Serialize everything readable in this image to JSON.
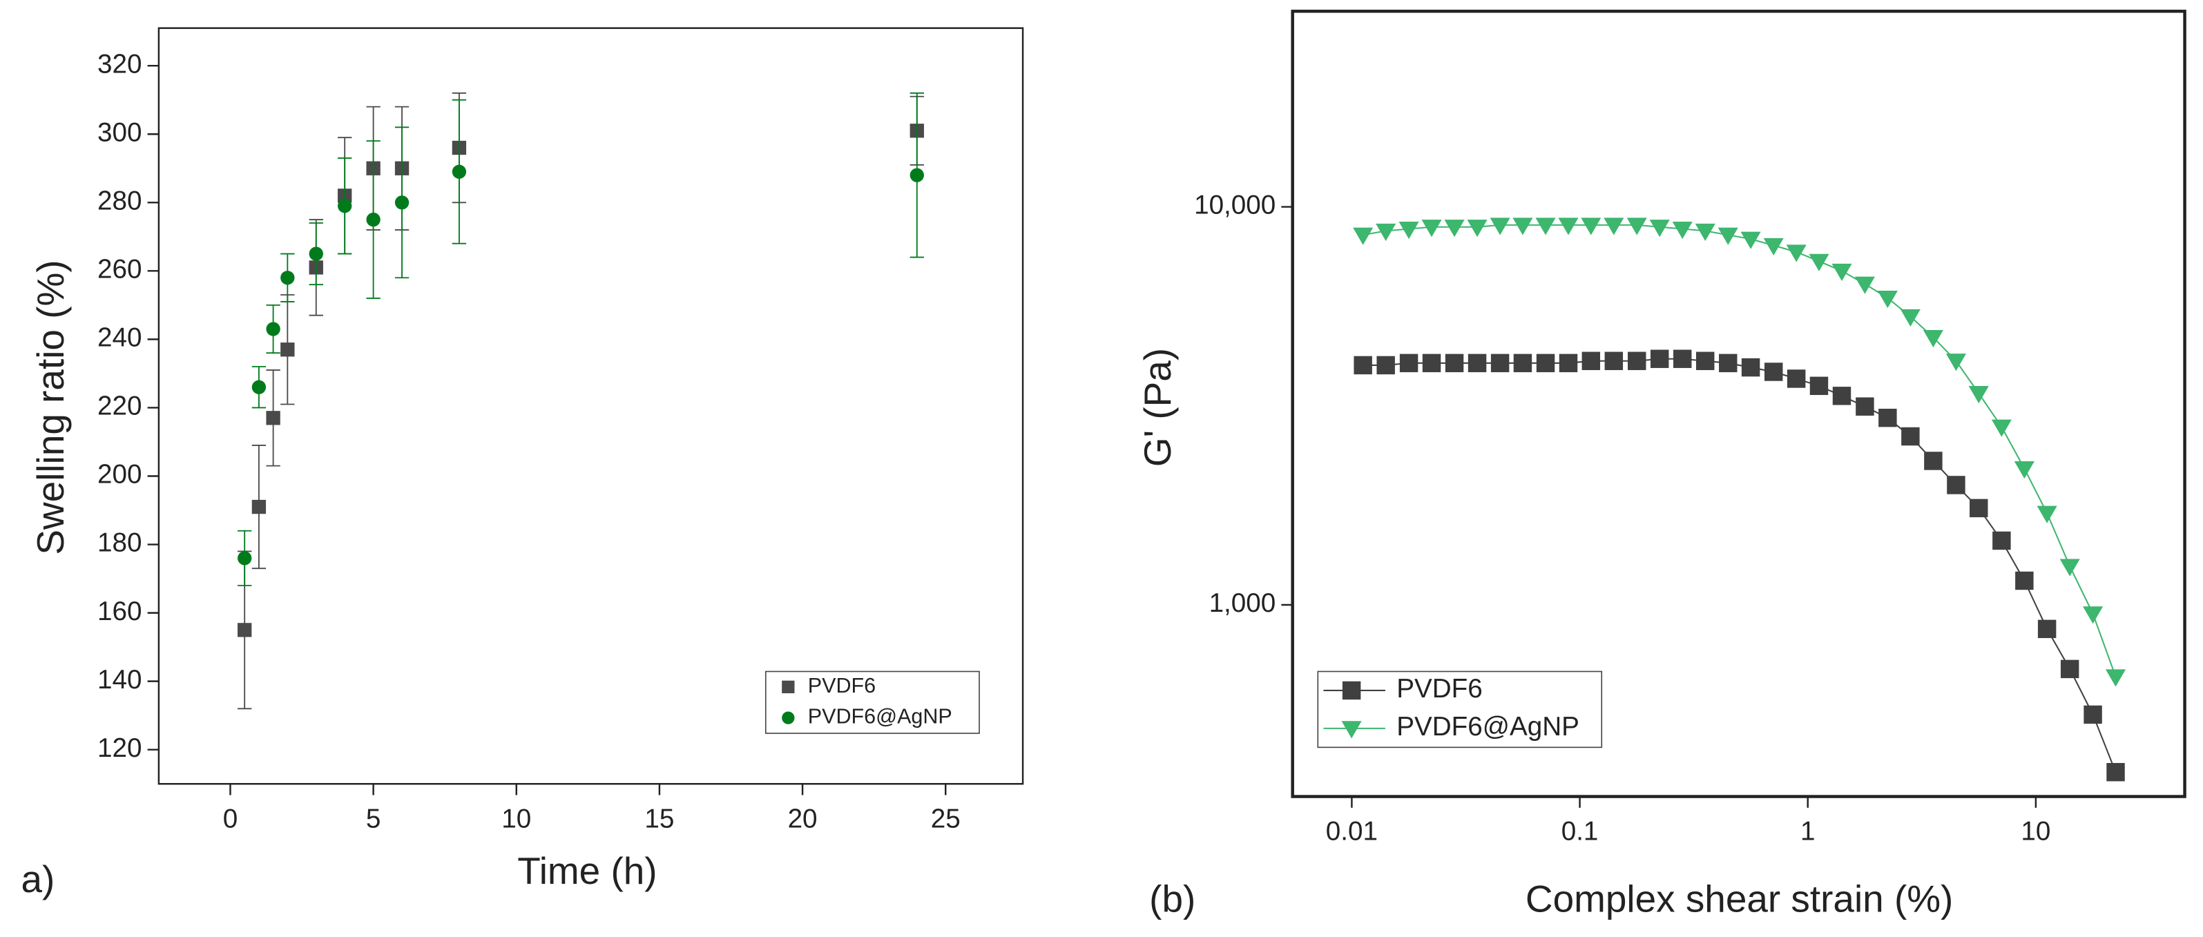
{
  "chart_data": [
    {
      "type": "scatter",
      "panel_label": "a)",
      "xlabel": "Time (h)",
      "ylabel": "Swelling ratio (%)",
      "x": [
        0.5,
        1,
        1.5,
        2,
        3,
        4,
        5,
        6,
        8,
        24
      ],
      "xlim": [
        -2.5,
        27.7
      ],
      "xticks": [
        0,
        5,
        10,
        15,
        20,
        25
      ],
      "ylim": [
        110,
        331
      ],
      "yticks": [
        120,
        140,
        160,
        180,
        200,
        220,
        240,
        260,
        280,
        300,
        320
      ],
      "legend": "lower right",
      "series": [
        {
          "name": "PVDF6",
          "color": "#4a4a4a",
          "marker": "square",
          "values": [
            155,
            191,
            217,
            237,
            261,
            282,
            290,
            290,
            296,
            301
          ],
          "errors": [
            23,
            18,
            14,
            16,
            14,
            17,
            18,
            18,
            16,
            10
          ]
        },
        {
          "name": "PVDF6@AgNP",
          "color": "#007b1c",
          "marker": "circle",
          "values": [
            176,
            226,
            243,
            258,
            265,
            279,
            275,
            280,
            289,
            288
          ],
          "errors": [
            8,
            6,
            7,
            7,
            9,
            14,
            23,
            22,
            21,
            24
          ]
        }
      ]
    },
    {
      "type": "line",
      "panel_label": "(b)",
      "xlabel": "Complex shear strain (%)",
      "ylabel": "G' (Pa)",
      "log_x": true,
      "log_y": true,
      "x": [
        0.0112,
        0.0141,
        0.0178,
        0.0224,
        0.0282,
        0.0355,
        0.0447,
        0.0562,
        0.0708,
        0.0891,
        0.112,
        0.141,
        0.178,
        0.224,
        0.282,
        0.355,
        0.447,
        0.562,
        0.708,
        0.891,
        1.12,
        1.41,
        1.78,
        2.24,
        2.82,
        3.55,
        4.47,
        5.62,
        7.08,
        8.91,
        11.2,
        14.1,
        17.8,
        22.4
      ],
      "xlim": [
        0.0055,
        45
      ],
      "xticks": [
        0.01,
        0.1,
        1,
        10
      ],
      "ylim": [
        330,
        31000
      ],
      "yticks": [
        {
          "value": 1000,
          "label": "1,000"
        },
        {
          "value": 10000,
          "label": "10,000"
        }
      ],
      "legend": "lower left",
      "series": [
        {
          "name": "PVDF6",
          "color": "#404040",
          "marker": "square",
          "values": [
            4000,
            4000,
            4050,
            4050,
            4050,
            4050,
            4050,
            4050,
            4050,
            4050,
            4100,
            4100,
            4100,
            4150,
            4150,
            4100,
            4050,
            3950,
            3850,
            3700,
            3550,
            3350,
            3150,
            2950,
            2650,
            2300,
            2000,
            1750,
            1450,
            1150,
            870,
            690,
            530,
            380
          ]
        },
        {
          "name": "PVDF6@AgNP",
          "color": "#3db66e",
          "marker": "triangle",
          "values": [
            8500,
            8700,
            8800,
            8900,
            8900,
            8900,
            9000,
            9000,
            9000,
            9000,
            9000,
            9000,
            9000,
            8900,
            8800,
            8700,
            8500,
            8300,
            8000,
            7700,
            7300,
            6900,
            6400,
            5900,
            5300,
            4700,
            4100,
            3400,
            2800,
            2200,
            1700,
            1250,
            950,
            660
          ]
        }
      ]
    }
  ]
}
